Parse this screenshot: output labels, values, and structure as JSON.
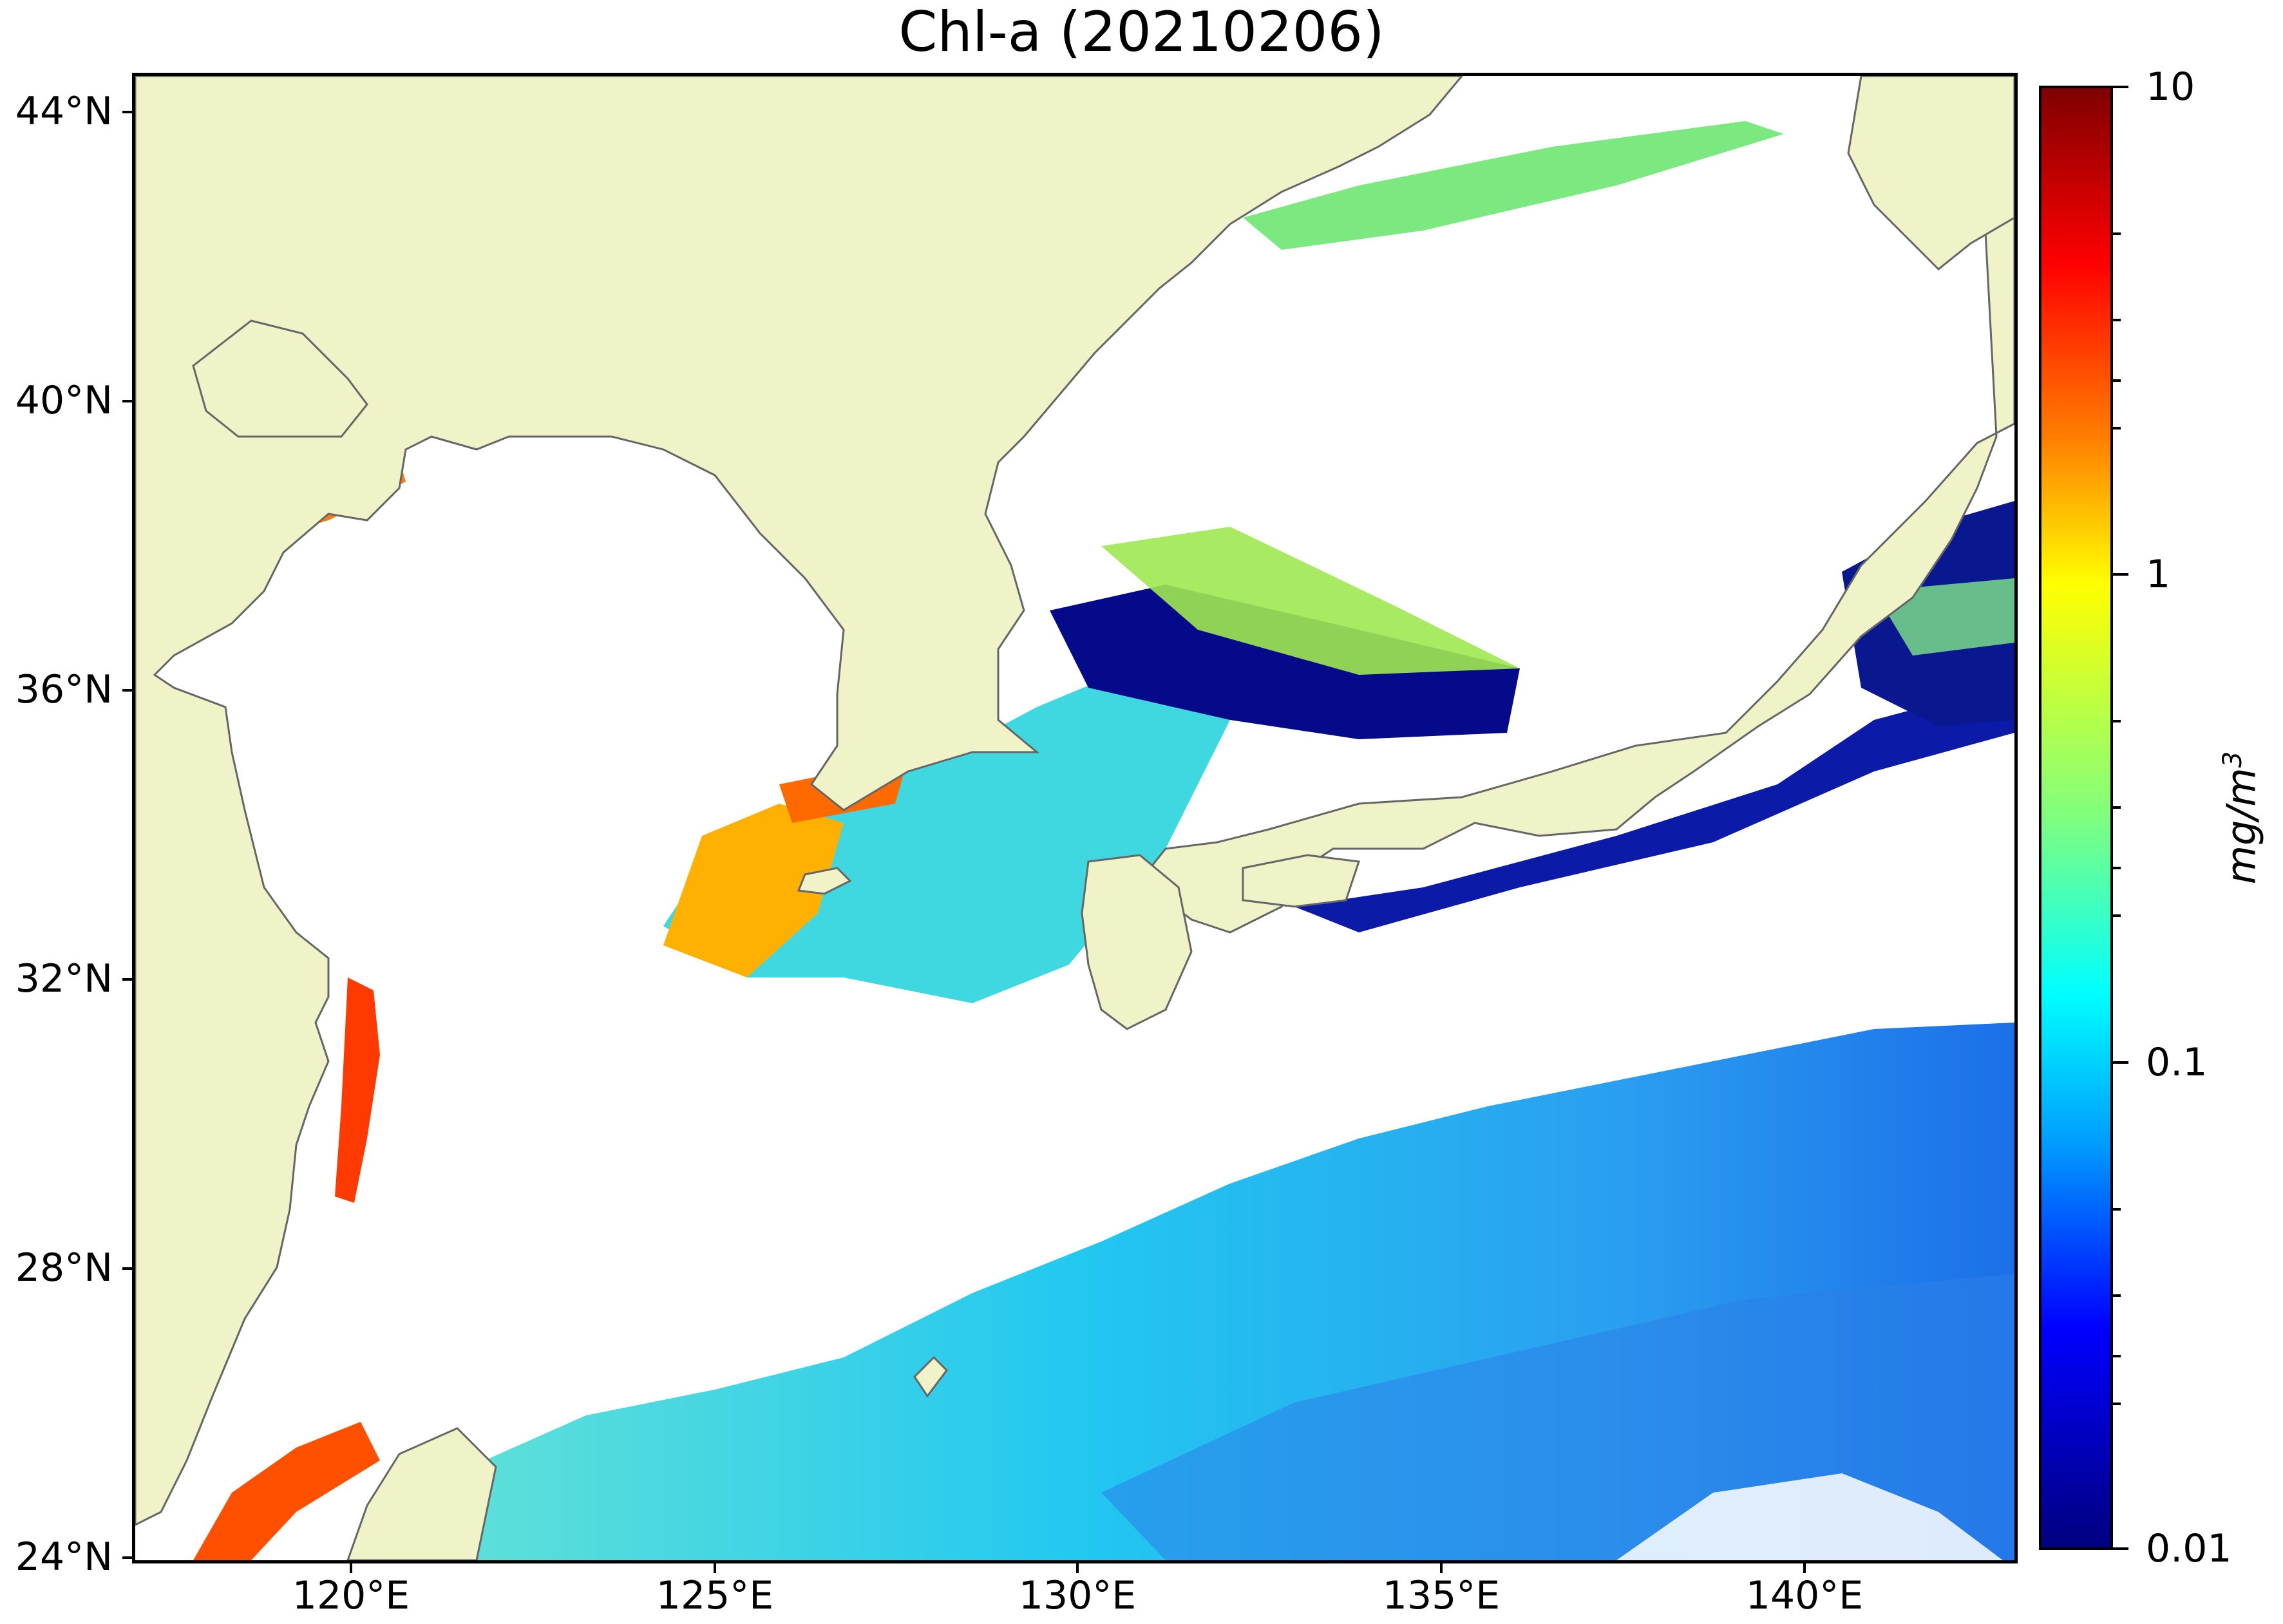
{
  "title": "Chl-a (20210206)",
  "map": {
    "lat_labels": [
      "44°N",
      "40°N",
      "36°N",
      "32°N",
      "28°N",
      "24°N"
    ],
    "lon_labels": [
      "120°E",
      "125°E",
      "130°E",
      "135°E",
      "140°E"
    ],
    "colors": {
      "land": "#f0f3c7",
      "coastline": "#666666",
      "no_data": "#ffffff"
    }
  },
  "colorbar": {
    "tick_labels": [
      "10",
      "1",
      "0.1",
      "0.01"
    ],
    "unit": "mg/m",
    "unit_sup": "3",
    "scale": "log",
    "range": [
      0.01,
      10
    ],
    "colormap": "jet"
  }
}
